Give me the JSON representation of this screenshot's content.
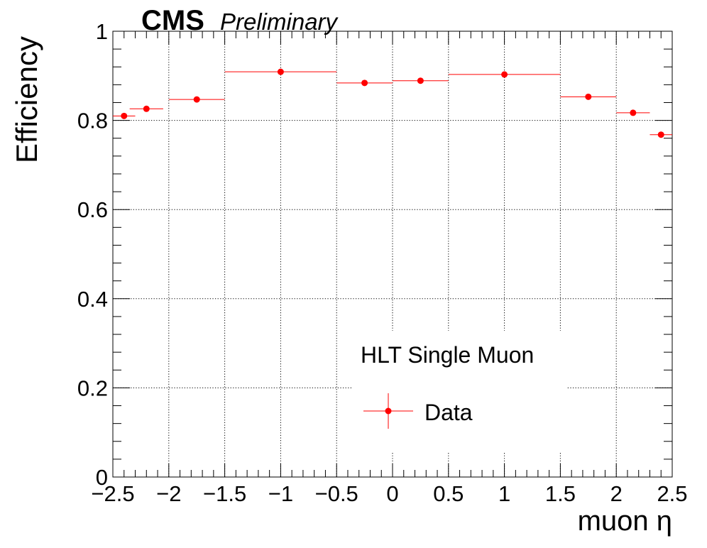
{
  "header": {
    "experiment": "CMS",
    "status": "Preliminary"
  },
  "legend": {
    "title": "HLT Single Muon",
    "entry": "Data"
  },
  "chart_data": {
    "type": "scatter",
    "xlabel": "muon η",
    "ylabel": "Efficiency",
    "xlim": [
      -2.5,
      2.5
    ],
    "ylim": [
      0,
      1
    ],
    "x_ticks": [
      "−2.5",
      "−2",
      "−1.5",
      "−1",
      "−0.5",
      "0",
      "0.5",
      "1",
      "1.5",
      "2",
      "2.5"
    ],
    "y_ticks": [
      "0",
      "0.2",
      "0.4",
      "0.6",
      "0.8",
      "1"
    ],
    "grid": true,
    "legend_position": "bottom-center",
    "series": [
      {
        "name": "Data",
        "color": "#ff0000",
        "marker": "circle",
        "points": [
          {
            "x": -2.4,
            "y": 0.81,
            "xerr": 0.1,
            "yerr": 0.004
          },
          {
            "x": -2.2,
            "y": 0.826,
            "xerr": 0.15,
            "yerr": 0.004
          },
          {
            "x": -1.75,
            "y": 0.847,
            "xerr": 0.25,
            "yerr": 0.003
          },
          {
            "x": -1.0,
            "y": 0.909,
            "xerr": 0.5,
            "yerr": 0.002
          },
          {
            "x": -0.25,
            "y": 0.884,
            "xerr": 0.25,
            "yerr": 0.003
          },
          {
            "x": 0.25,
            "y": 0.889,
            "xerr": 0.25,
            "yerr": 0.003
          },
          {
            "x": 1.0,
            "y": 0.903,
            "xerr": 0.5,
            "yerr": 0.002
          },
          {
            "x": 1.75,
            "y": 0.853,
            "xerr": 0.25,
            "yerr": 0.003
          },
          {
            "x": 2.15,
            "y": 0.817,
            "xerr": 0.15,
            "yerr": 0.004
          },
          {
            "x": 2.4,
            "y": 0.768,
            "xerr": 0.1,
            "yerr": 0.005
          }
        ]
      }
    ]
  }
}
